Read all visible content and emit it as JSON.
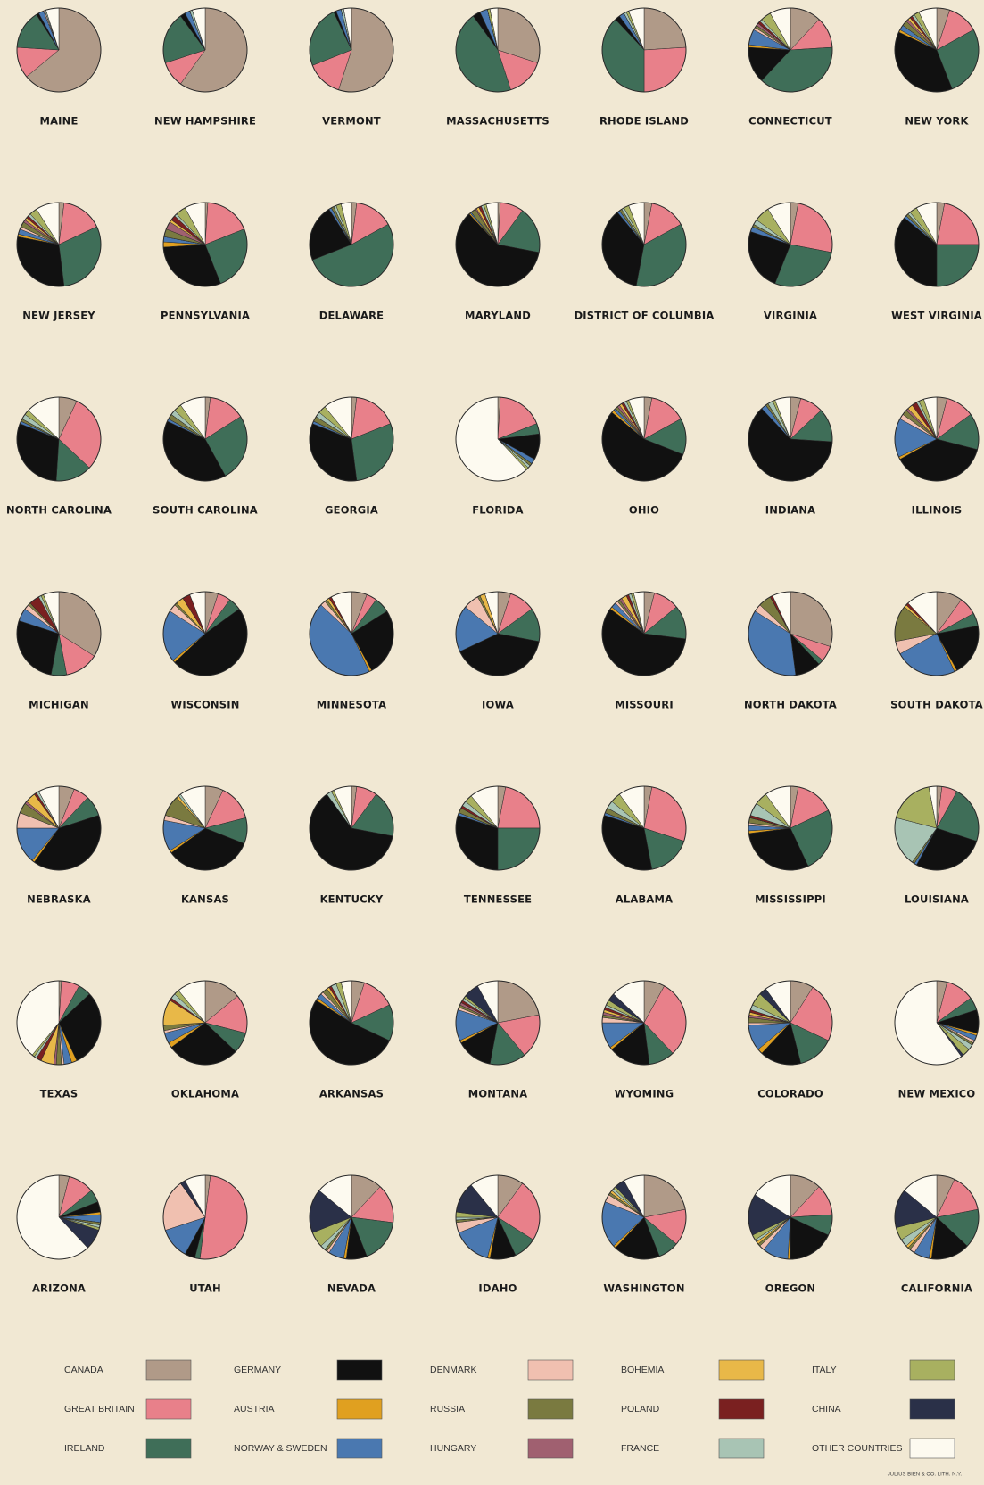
{
  "chart_data": {
    "type": "pie",
    "categories": [
      "CANADA",
      "GREAT BRITAIN",
      "IRELAND",
      "GERMANY",
      "AUSTRIA",
      "NORWAY & SWEDEN",
      "DENMARK",
      "RUSSIA",
      "HUNGARY",
      "BOHEMIA",
      "POLAND",
      "FRANCE",
      "ITALY",
      "CHINA",
      "OTHER COUNTRIES"
    ],
    "colors": [
      "#b09a88",
      "#e8808a",
      "#3f6e58",
      "#111111",
      "#e0a020",
      "#4a78b0",
      "#f0c0b0",
      "#7a7a40",
      "#a06070",
      "#e8b848",
      "#7a2020",
      "#a8c4b4",
      "#a8b060",
      "#2a3048",
      "#fdfaf0"
    ],
    "charts": [
      {
        "title": "MAINE",
        "values": [
          64,
          12,
          15,
          1,
          0,
          2,
          0.5,
          0,
          0,
          0,
          0,
          0.5,
          0,
          0,
          5
        ]
      },
      {
        "title": "NEW HAMPSHIRE",
        "values": [
          60,
          10,
          20,
          2,
          0,
          2,
          0,
          0,
          0,
          0,
          0,
          1,
          0,
          0,
          5
        ]
      },
      {
        "title": "VERMONT",
        "values": [
          55,
          14,
          24,
          1,
          0,
          2,
          0,
          0,
          0,
          0,
          0,
          1,
          0,
          0,
          3
        ]
      },
      {
        "title": "MASSACHUSETTS",
        "values": [
          30,
          15,
          45,
          3,
          0,
          3,
          0,
          0,
          0,
          0,
          0,
          0,
          1,
          0,
          3
        ]
      },
      {
        "title": "RHODE ISLAND",
        "values": [
          24,
          26,
          38,
          2,
          0,
          2,
          0,
          0,
          0,
          0,
          0,
          1,
          1,
          0,
          6
        ]
      },
      {
        "title": "CONNECTICUT",
        "values": [
          12,
          12,
          38,
          14,
          1,
          6,
          1,
          1,
          1,
          0,
          1,
          1,
          4,
          0,
          8
        ]
      },
      {
        "title": "NEW YORK",
        "values": [
          5,
          12,
          27,
          38,
          1,
          2,
          0,
          2,
          1,
          1,
          1,
          1,
          2,
          0,
          7
        ]
      },
      {
        "title": "NEW JERSEY",
        "values": [
          2,
          16,
          30,
          30,
          1,
          2,
          1,
          2,
          1,
          1,
          1,
          1,
          3,
          0,
          9
        ]
      },
      {
        "title": "PENNSYLVANIA",
        "values": [
          1,
          18,
          25,
          30,
          2,
          2,
          0,
          3,
          3,
          1,
          2,
          1,
          4,
          0,
          8
        ]
      },
      {
        "title": "DELAWARE",
        "values": [
          2,
          15,
          52,
          22,
          0,
          1,
          0,
          1,
          0,
          0,
          0,
          1,
          2,
          0,
          4
        ]
      },
      {
        "title": "MARYLAND",
        "values": [
          1,
          9,
          18,
          60,
          0.5,
          0.5,
          0,
          2,
          0.5,
          1,
          1,
          1,
          1,
          0,
          4.5
        ]
      },
      {
        "title": "DISTRICT OF COLUMBIA",
        "values": [
          3,
          14,
          36,
          36,
          0,
          1,
          0,
          1,
          0,
          0,
          0,
          1,
          2,
          0,
          6
        ]
      },
      {
        "title": "VIRGINIA",
        "values": [
          3,
          25,
          28,
          24,
          0,
          2,
          0,
          1,
          0,
          0,
          0,
          2,
          6,
          0,
          9
        ]
      },
      {
        "title": "WEST VIRGINIA",
        "values": [
          3,
          22,
          25,
          36,
          0,
          1,
          0,
          1,
          0,
          0,
          0,
          1,
          3,
          0,
          8
        ]
      },
      {
        "title": "NORTH CAROLINA",
        "values": [
          7,
          30,
          14,
          30,
          0,
          1,
          0,
          1,
          0,
          0,
          0,
          2,
          2,
          0,
          13
        ]
      },
      {
        "title": "SOUTH CAROLINA",
        "values": [
          2,
          14,
          26,
          40,
          0,
          1,
          0,
          2,
          0,
          0,
          0,
          2,
          3,
          0,
          10
        ]
      },
      {
        "title": "GEORGIA",
        "values": [
          2,
          17,
          29,
          33,
          0,
          1,
          0,
          2,
          0,
          0,
          0,
          2,
          3,
          0,
          11
        ]
      },
      {
        "title": "FLORIDA",
        "values": [
          1,
          18,
          4,
          10,
          0,
          2,
          0,
          1,
          0,
          0,
          0,
          1,
          1,
          0,
          62
        ]
      },
      {
        "title": "OHIO",
        "values": [
          3,
          14,
          14,
          55,
          1,
          1,
          0,
          1,
          1,
          1,
          1,
          1,
          1,
          0,
          6
        ]
      },
      {
        "title": "INDIANA",
        "values": [
          4,
          9,
          13,
          62,
          0,
          2,
          0,
          1,
          0,
          0,
          0,
          2,
          1,
          0,
          6
        ]
      },
      {
        "title": "ILLINOIS",
        "values": [
          4,
          11,
          14,
          38,
          1,
          15,
          2,
          2,
          1,
          2,
          2,
          1,
          2,
          0,
          5
        ]
      },
      {
        "title": "MICHIGAN",
        "values": [
          34,
          13,
          6,
          27,
          0,
          5,
          2,
          1,
          0,
          0,
          4,
          1,
          1,
          0,
          6
        ]
      },
      {
        "title": "WISCONSIN",
        "values": [
          5,
          5,
          5,
          48,
          1,
          20,
          3,
          1,
          0,
          3,
          3,
          0,
          0,
          0,
          6
        ]
      },
      {
        "title": "MINNESOTA",
        "values": [
          6,
          4,
          6,
          26,
          1,
          44,
          2,
          1,
          0,
          1,
          1,
          0,
          0,
          0,
          8
        ]
      },
      {
        "title": "IOWA",
        "values": [
          5,
          10,
          13,
          40,
          0,
          18,
          6,
          1,
          0,
          2,
          0,
          0,
          0,
          0,
          5
        ]
      },
      {
        "title": "MISSOURI",
        "values": [
          4,
          10,
          13,
          58,
          1,
          2,
          1,
          1,
          1,
          2,
          1,
          1,
          1,
          0,
          4
        ]
      },
      {
        "title": "NORTH DAKOTA",
        "values": [
          30,
          6,
          2,
          10,
          0,
          36,
          3,
          5,
          0,
          0,
          1,
          0,
          0,
          0,
          7
        ]
      },
      {
        "title": "SOUTH DAKOTA",
        "values": [
          10,
          7,
          5,
          20,
          1,
          24,
          5,
          14,
          0,
          1,
          1,
          0,
          0,
          0,
          12
        ]
      },
      {
        "title": "NEBRASKA",
        "values": [
          6,
          6,
          8,
          40,
          1,
          14,
          6,
          4,
          1,
          4,
          1,
          1,
          0,
          0,
          8
        ]
      },
      {
        "title": "KANSAS",
        "values": [
          7,
          14,
          10,
          34,
          1,
          12,
          2,
          8,
          0,
          1,
          0,
          1,
          0,
          0,
          10
        ]
      },
      {
        "title": "KENTUCKY",
        "values": [
          2,
          8,
          18,
          62,
          0,
          0,
          0,
          0,
          0,
          0,
          0,
          2,
          1,
          0,
          7
        ]
      },
      {
        "title": "TENNESSEE",
        "values": [
          3,
          22,
          25,
          30,
          0,
          1,
          0,
          2,
          0,
          0,
          1,
          2,
          3,
          0,
          11
        ]
      },
      {
        "title": "ALABAMA",
        "values": [
          3,
          27,
          17,
          33,
          0,
          1,
          0,
          2,
          0,
          0,
          0,
          3,
          4,
          0,
          10
        ]
      },
      {
        "title": "MISSISSIPPI",
        "values": [
          3,
          15,
          25,
          30,
          1,
          2,
          1,
          2,
          0,
          0,
          1,
          5,
          5,
          0,
          10
        ]
      },
      {
        "title": "LOUISIANA",
        "values": [
          2,
          6,
          22,
          28,
          0,
          1,
          0,
          1,
          0,
          0,
          0,
          19,
          18,
          0,
          3
        ]
      },
      {
        "title": "TEXAS",
        "values": [
          1,
          7,
          5,
          30,
          2,
          3,
          1,
          2,
          1,
          5,
          2,
          1,
          1,
          0,
          39
        ]
      },
      {
        "title": "OKLAHOMA",
        "values": [
          14,
          15,
          8,
          28,
          2,
          4,
          1,
          2,
          0,
          10,
          1,
          2,
          2,
          0,
          11
        ]
      },
      {
        "title": "ARKANSAS",
        "values": [
          5,
          13,
          14,
          52,
          1,
          2,
          1,
          2,
          0,
          1,
          1,
          2,
          2,
          0,
          4
        ]
      },
      {
        "title": "MONTANA",
        "values": [
          22,
          17,
          14,
          14,
          1,
          12,
          1,
          1,
          1,
          0,
          1,
          1,
          1,
          6,
          8
        ]
      },
      {
        "title": "WYOMING",
        "values": [
          8,
          30,
          10,
          16,
          1,
          10,
          2,
          1,
          1,
          1,
          1,
          1,
          2,
          3,
          13
        ]
      },
      {
        "title": "COLORADO",
        "values": [
          9,
          23,
          14,
          16,
          2,
          10,
          1,
          2,
          1,
          1,
          1,
          2,
          5,
          3,
          10
        ]
      },
      {
        "title": "NEW MEXICO",
        "values": [
          4,
          11,
          5,
          9,
          1,
          2,
          1,
          1,
          0,
          0,
          0,
          2,
          3,
          1,
          60
        ]
      },
      {
        "title": "ARIZONA",
        "values": [
          4,
          10,
          5,
          4,
          1,
          3,
          0,
          1,
          0,
          0,
          0,
          1,
          1,
          8,
          62
        ]
      },
      {
        "title": "UTAH",
        "values": [
          2,
          50,
          2,
          4,
          0,
          12,
          20,
          0,
          0,
          0,
          0,
          0,
          0,
          2,
          8
        ]
      },
      {
        "title": "NEVADA",
        "values": [
          12,
          15,
          17,
          8,
          1,
          6,
          1,
          1,
          0,
          0,
          0,
          2,
          6,
          17,
          14
        ]
      },
      {
        "title": "IDAHO",
        "values": [
          10,
          24,
          9,
          10,
          1,
          15,
          4,
          1,
          0,
          0,
          0,
          1,
          2,
          12,
          11
        ]
      },
      {
        "title": "WASHINGTON",
        "values": [
          22,
          14,
          8,
          18,
          1,
          18,
          3,
          1,
          0,
          1,
          0,
          1,
          1,
          4,
          8
        ]
      },
      {
        "title": "OREGON",
        "values": [
          12,
          12,
          8,
          18,
          1,
          10,
          2,
          1,
          0,
          1,
          0,
          1,
          2,
          16,
          16
        ]
      },
      {
        "title": "CALIFORNIA",
        "values": [
          7,
          15,
          15,
          15,
          1,
          6,
          2,
          1,
          0,
          1,
          0,
          3,
          5,
          15,
          14
        ]
      }
    ],
    "credit": "JULIUS BIEN & CO. LITH. N.Y."
  }
}
